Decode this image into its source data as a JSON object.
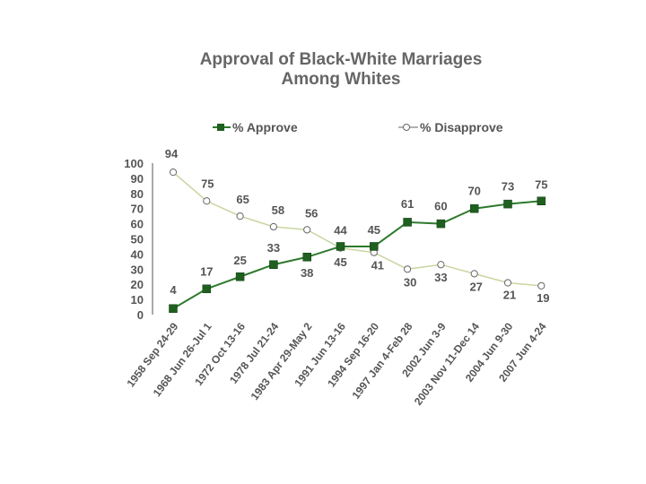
{
  "chart_data": {
    "type": "line",
    "title": "Approval of Black-White Marriages",
    "subtitle": "Among Whites",
    "categories": [
      "1958 Sep 24-29",
      "1968 Jun 26-Jul 1",
      "1972 Oct 13-16",
      "1978 Jul 21-24",
      "1983 Apr 29-May 2",
      "1991 Jun 13-16",
      "1994 Sep 16-20",
      "1997 Jan 4-Feb 28",
      "2002 Jun 3-9",
      "2003 Nov 11-Dec 14",
      "2004 Jun 9-30",
      "2007 Jun 4-24"
    ],
    "series": [
      {
        "name": "% Approve",
        "values": [
          4,
          17,
          25,
          33,
          38,
          45,
          45,
          61,
          60,
          70,
          73,
          75
        ],
        "color": "#2e7a2e",
        "marker": "square"
      },
      {
        "name": "% Disapprove",
        "values": [
          94,
          75,
          65,
          58,
          56,
          44,
          41,
          30,
          33,
          27,
          21,
          19
        ],
        "color": "#c8d6a0",
        "marker": "circle"
      }
    ],
    "y_ticks": [
      "0",
      "10",
      "20",
      "30",
      "40",
      "50",
      "60",
      "70",
      "80",
      "90",
      "100"
    ],
    "ylim": [
      0,
      100
    ],
    "grid": false,
    "legend_position": "top"
  }
}
